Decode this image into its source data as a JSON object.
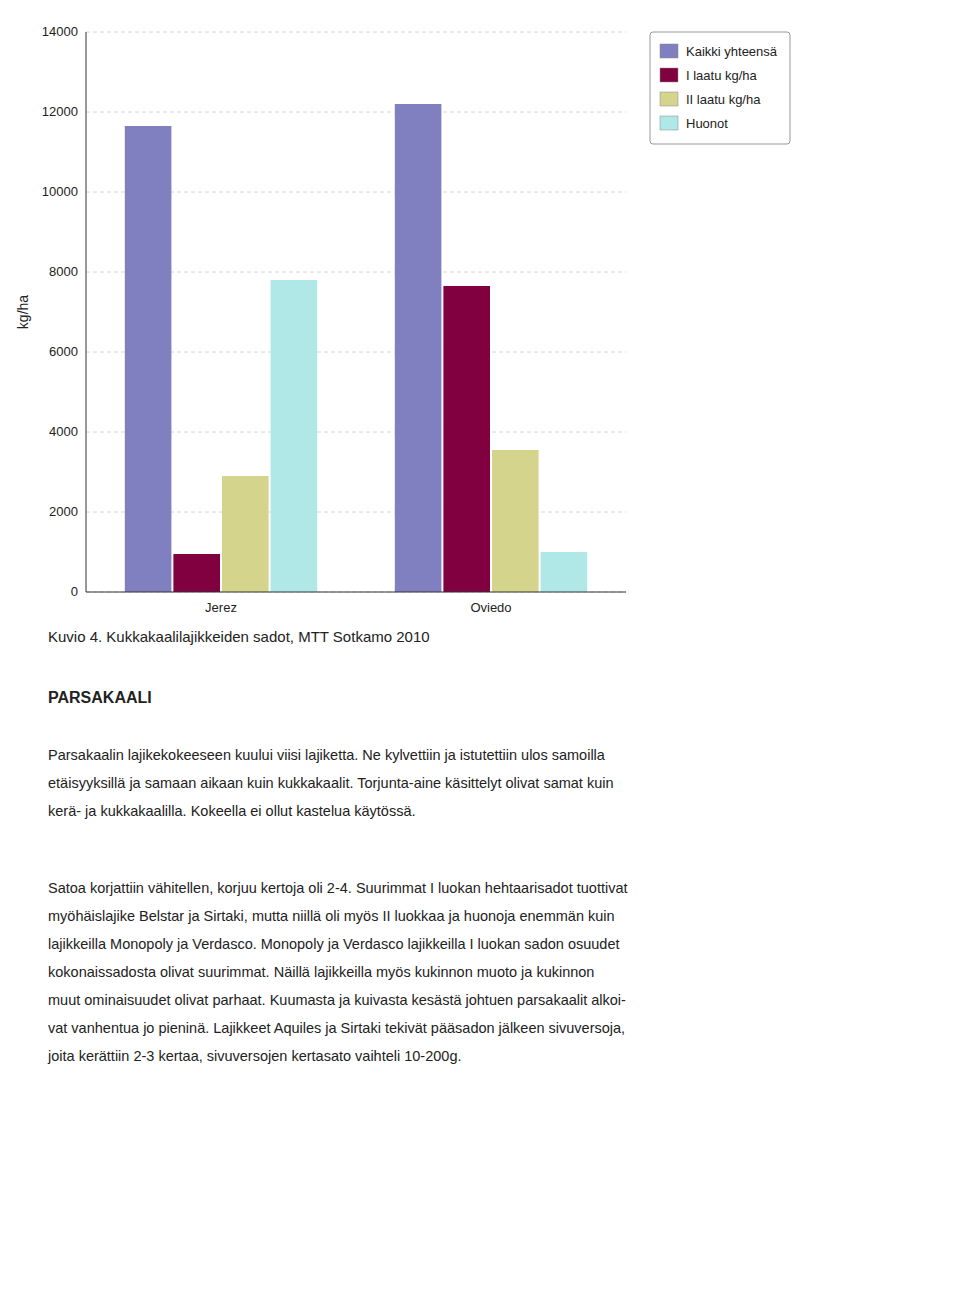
{
  "chart_data": {
    "type": "bar",
    "categories": [
      "Jerez",
      "Oviedo"
    ],
    "series": [
      {
        "name": "Kaikki yhteensä",
        "color": "#8080c0",
        "values": [
          11650,
          12200
        ]
      },
      {
        "name": "I laatu kg/ha",
        "color": "#800040",
        "values": [
          950,
          7650
        ]
      },
      {
        "name": "II laatu kg/ha",
        "color": "#d4d48c",
        "values": [
          2900,
          3550
        ]
      },
      {
        "name": "Huonot",
        "color": "#b0e8e8",
        "values": [
          7800,
          1000
        ]
      }
    ],
    "y_label": "kg/ha",
    "ylim": [
      0,
      14000
    ],
    "yticks": [
      0,
      2000,
      4000,
      6000,
      8000,
      10000,
      12000,
      14000
    ],
    "grid": true,
    "legend": "right"
  },
  "text": {
    "caption": "Kuvio 4. Kukkakaalilajikkeiden sadot, MTT Sotkamo 2010",
    "heading": "PARSAKAALI",
    "paragraphs": [
      [
        "Parsakaalin lajikekokeeseen kuului viisi lajiketta. Ne kylvettiin ja istutettiin ulos samoilla",
        "etäisyyksillä ja samaan aikaan kuin kukkakaalit. Torjunta-aine käsittelyt olivat samat kuin",
        "kerä- ja kukkakaalilla. Kokeella ei ollut kastelua käytössä."
      ],
      [
        "Satoa korjattiin vähitellen, korjuu kertoja oli 2-4. Suurimmat I luokan hehtaarisadot tuottivat",
        "myöhäislajike Belstar ja Sirtaki, mutta niillä oli myös II luokkaa ja huonoja enemmän kuin",
        "lajikkeilla Monopoly ja Verdasco. Monopoly ja Verdasco lajikkeilla I luokan sadon osuudet",
        "kokonaissadosta olivat suurimmat. Näillä lajikkeilla myös kukinnon muoto ja kukinnon",
        "muut ominaisuudet olivat parhaat. Kuumasta ja kuivasta kesästä johtuen parsakaalit alkoi-",
        "vat vanhentua jo pieninä. Lajikkeet Aquiles ja Sirtaki tekivät pääsadon jälkeen sivuversoja,",
        "joita kerättiin 2-3 kertaa, sivuversojen kertasato vaihteli 10-200g."
      ]
    ]
  }
}
